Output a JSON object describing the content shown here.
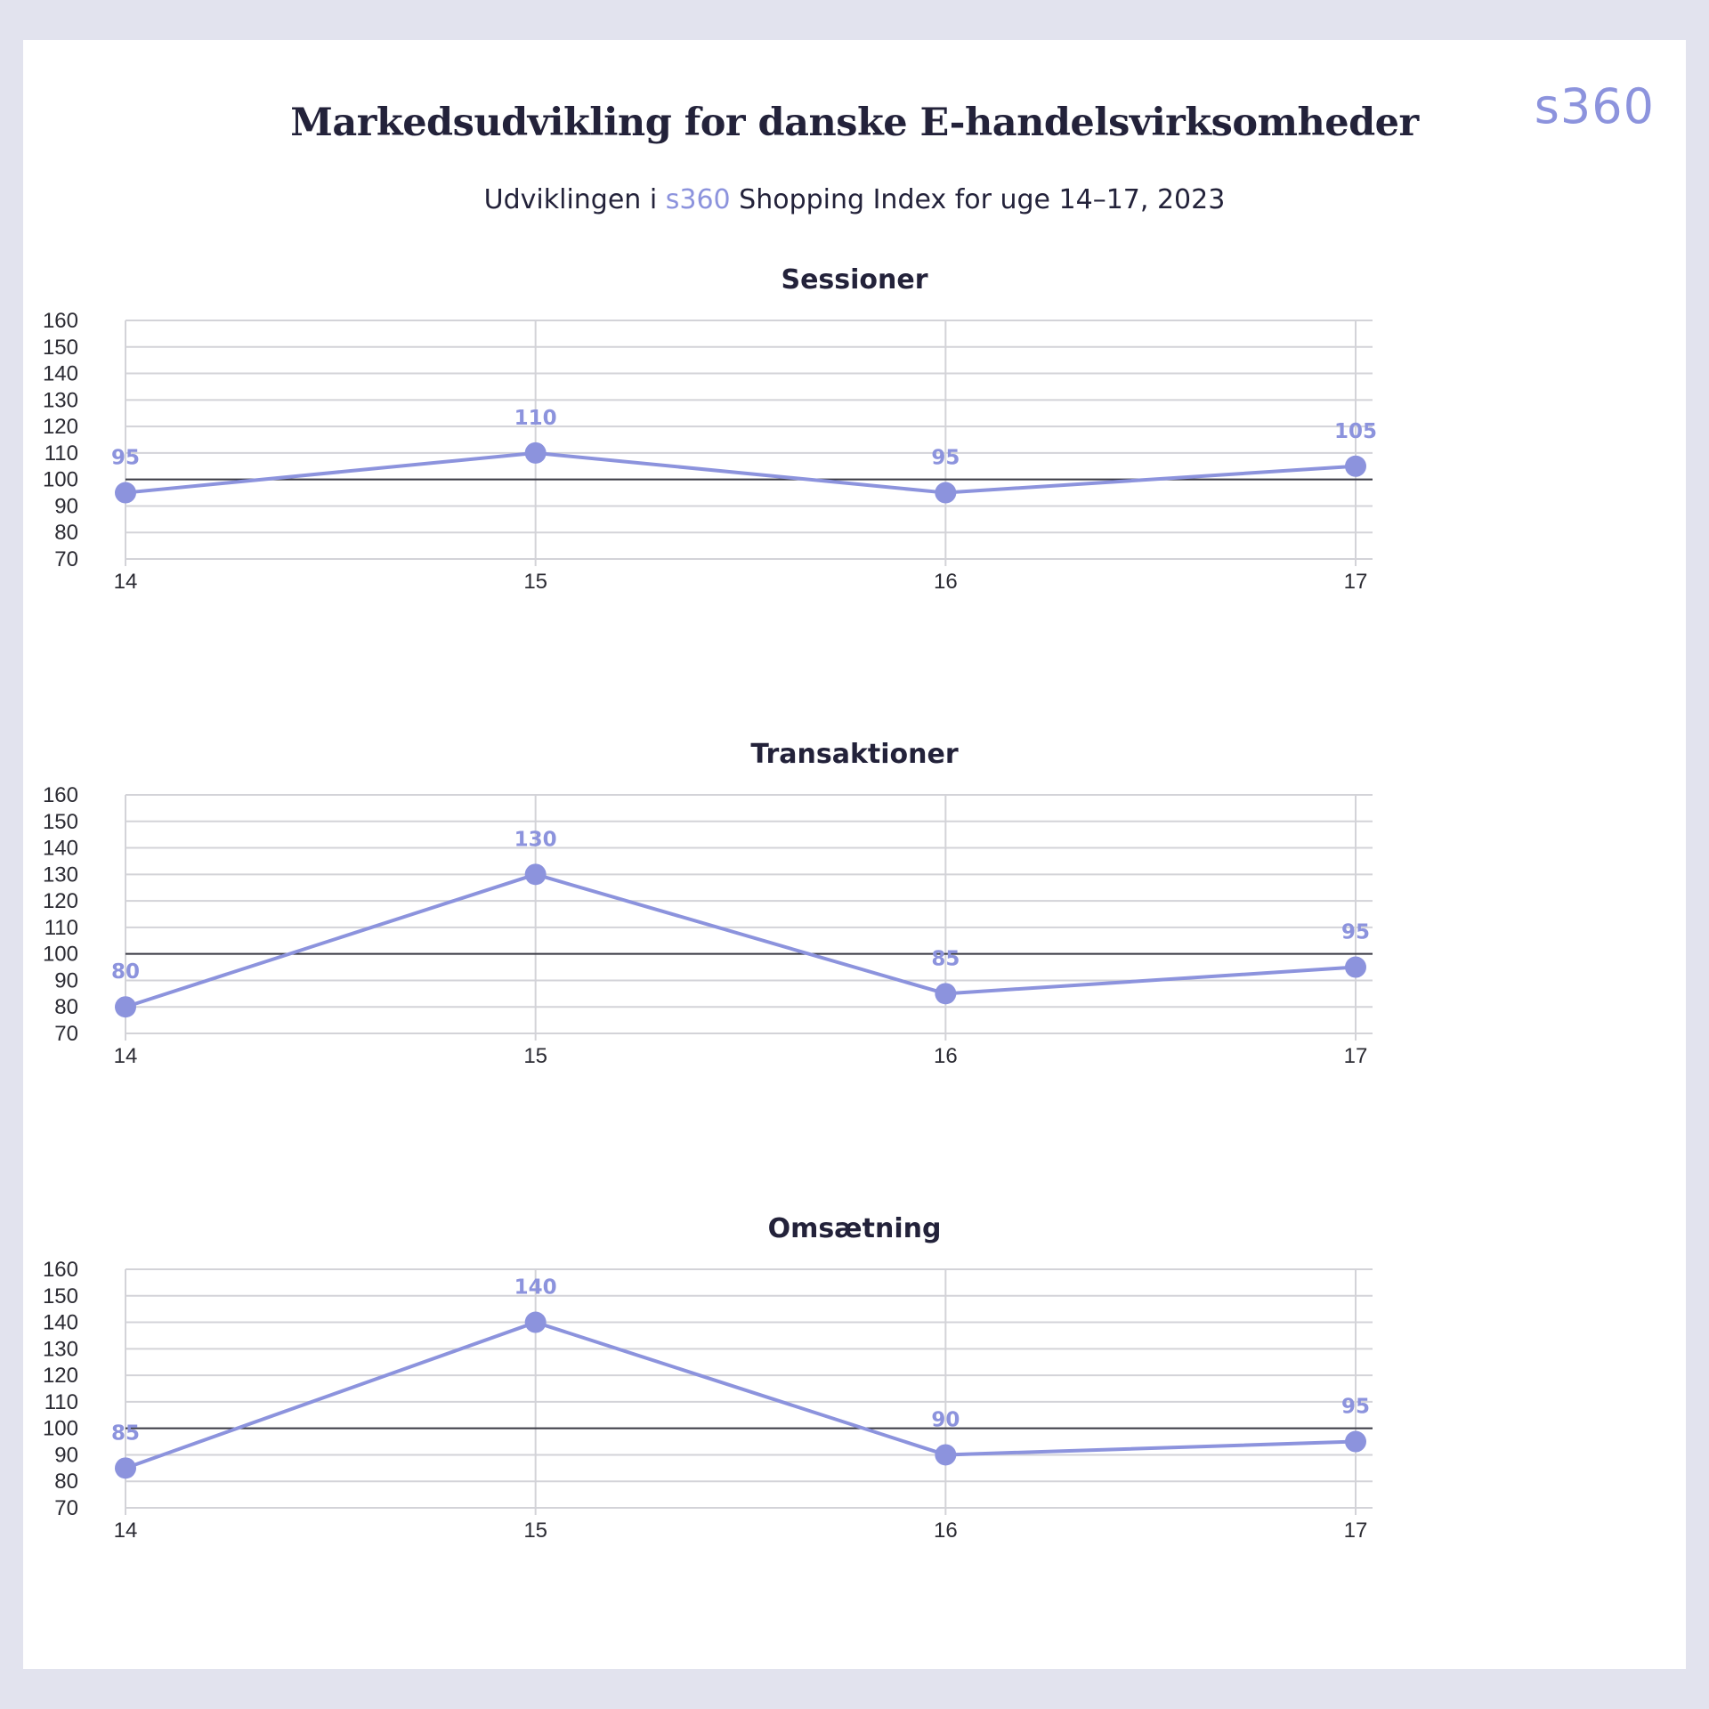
{
  "header": {
    "logo": "s360",
    "title": "Markedsudvikling for danske E-handelsvirksomheder",
    "subtitle_prefix": "Udviklingen i ",
    "subtitle_brand": "s360",
    "subtitle_suffix": " Shopping Index for uge 14–17, 2023"
  },
  "colors": {
    "series": "#8c93dd",
    "baseline": "#3a3a44",
    "grid": "#d3d3d8",
    "text": "#23223a"
  },
  "chart_data": [
    {
      "type": "line",
      "title": "Sessioner",
      "x": [
        "14",
        "15",
        "16",
        "17"
      ],
      "values": [
        95,
        110,
        95,
        105
      ],
      "ylim": [
        70,
        160
      ],
      "yticks": [
        70,
        80,
        90,
        100,
        110,
        120,
        130,
        140,
        150,
        160
      ],
      "reference_line": 100,
      "grid": true,
      "data_labels": true
    },
    {
      "type": "line",
      "title": "Transaktioner",
      "x": [
        "14",
        "15",
        "16",
        "17"
      ],
      "values": [
        80,
        130,
        85,
        95
      ],
      "ylim": [
        70,
        160
      ],
      "yticks": [
        70,
        80,
        90,
        100,
        110,
        120,
        130,
        140,
        150,
        160
      ],
      "reference_line": 100,
      "grid": true,
      "data_labels": true
    },
    {
      "type": "line",
      "title": "Omsætning",
      "x": [
        "14",
        "15",
        "16",
        "17"
      ],
      "values": [
        85,
        140,
        90,
        95
      ],
      "ylim": [
        70,
        160
      ],
      "yticks": [
        70,
        80,
        90,
        100,
        110,
        120,
        130,
        140,
        150,
        160
      ],
      "reference_line": 100,
      "grid": true,
      "data_labels": true
    }
  ]
}
